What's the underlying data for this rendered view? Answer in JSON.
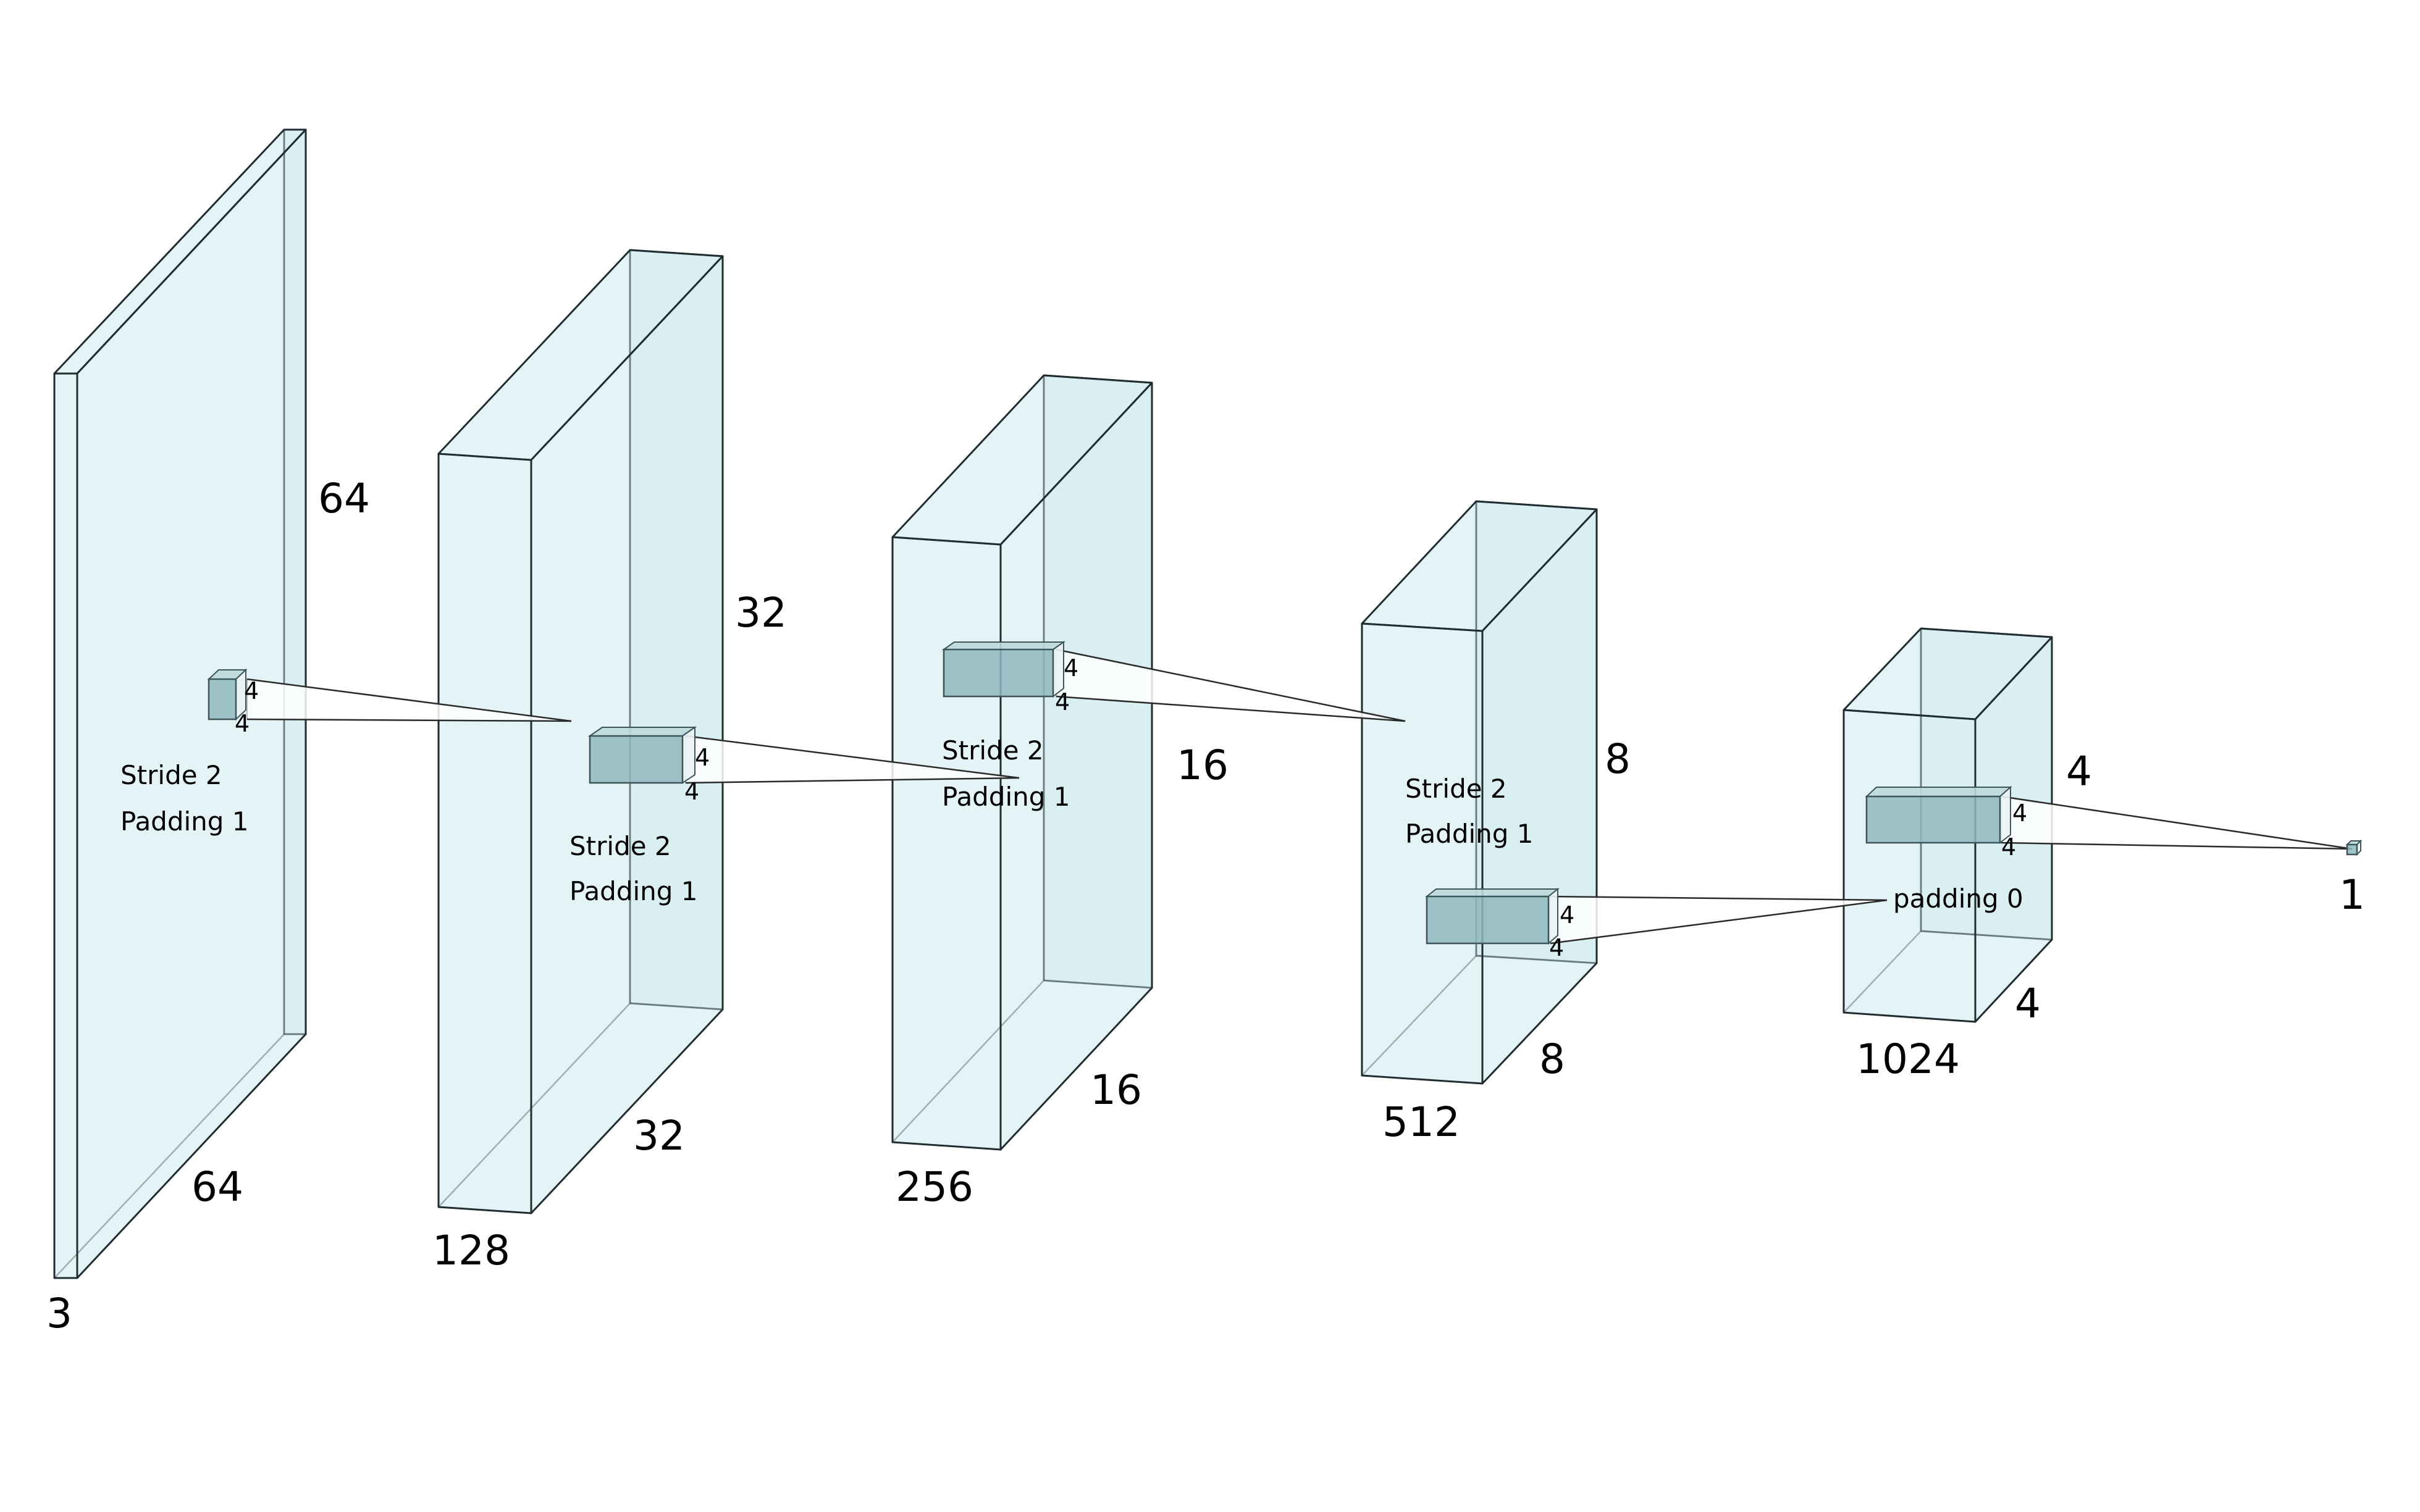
{
  "colors": {
    "block_fill": "#d3ecef",
    "block_stroke": "#1f2d30",
    "kernel_fill": "#8fb8bf",
    "background": "#ffffff"
  },
  "layers": [
    {
      "channels": "3",
      "height": "64",
      "width": "64"
    },
    {
      "channels": "128",
      "height": "32",
      "width": "32"
    },
    {
      "channels": "256",
      "height": "16",
      "width": "16"
    },
    {
      "channels": "512",
      "height": "8",
      "width": "8"
    },
    {
      "channels": "1024",
      "height": "4",
      "width": "4"
    },
    {
      "channels": "1"
    }
  ],
  "convs": [
    {
      "kh": "4",
      "kw": "4",
      "stride": "Stride 2",
      "padding": "Padding 1"
    },
    {
      "kh": "4",
      "kw": "4",
      "stride": "Stride 2",
      "padding": "Padding 1"
    },
    {
      "kh": "4",
      "kw": "4",
      "stride": "Stride 2",
      "padding": "Padding 1"
    },
    {
      "kh": "4",
      "kw": "4",
      "stride": "Stride 2",
      "padding": "Padding 1"
    },
    {
      "kh": "4",
      "kw": "4",
      "padding": "padding 0"
    }
  ]
}
